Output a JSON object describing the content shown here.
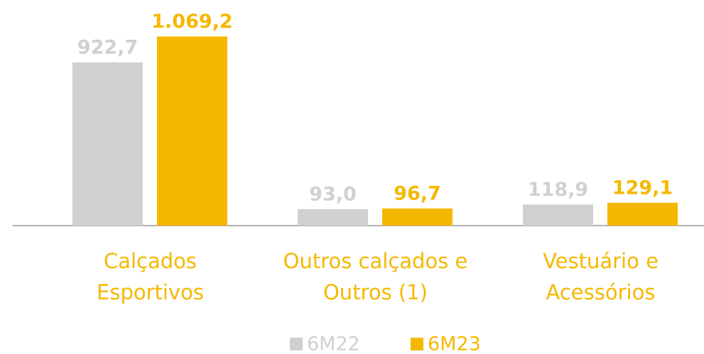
{
  "chart_data": {
    "type": "bar",
    "categories": [
      "Calçados\nEsportivos",
      "Outros calçados e\nOutros (1)",
      "Vestuário e\nAcessórios"
    ],
    "series": [
      {
        "name": "6M22",
        "color": "#d0d0d0",
        "values": [
          922.7,
          93.0,
          118.9
        ],
        "value_labels": [
          "922,7",
          "93,0",
          "118,9"
        ]
      },
      {
        "name": "6M23",
        "color": "#f5b800",
        "values": [
          1069.2,
          96.7,
          129.1
        ],
        "value_labels": [
          "1.069,2",
          "96,7",
          "129,1"
        ]
      }
    ],
    "ylim": [
      0,
      1100
    ]
  }
}
